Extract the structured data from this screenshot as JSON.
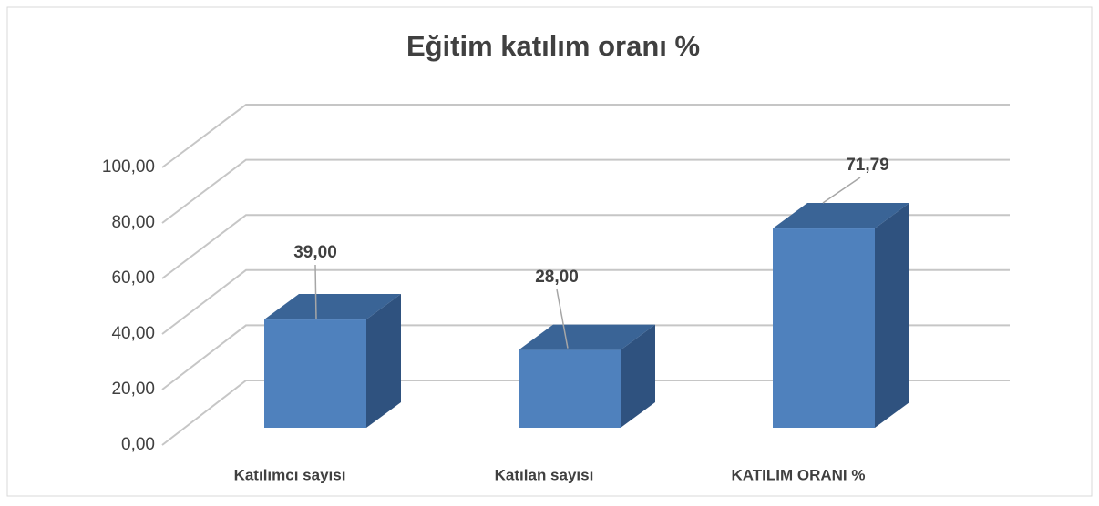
{
  "chart_data": {
    "type": "bar3d",
    "title": "Eğitim katılım oranı %",
    "categories": [
      "Katılımcı sayısı",
      "Katılan sayısı",
      "KATILIM ORANI %"
    ],
    "values": [
      39,
      28,
      71.79
    ],
    "value_labels": [
      "39,00",
      "28,00",
      "71,79"
    ],
    "color": "#4f81bd",
    "ylim": [
      0,
      100
    ],
    "yticks": [
      {
        "value": 0,
        "label": "0,00"
      },
      {
        "value": 20,
        "label": "20,00"
      },
      {
        "value": 40,
        "label": "40,00"
      },
      {
        "value": 60,
        "label": "60,00"
      },
      {
        "value": 80,
        "label": "80,00"
      },
      {
        "value": 100,
        "label": "100,00"
      }
    ],
    "grid": true
  }
}
